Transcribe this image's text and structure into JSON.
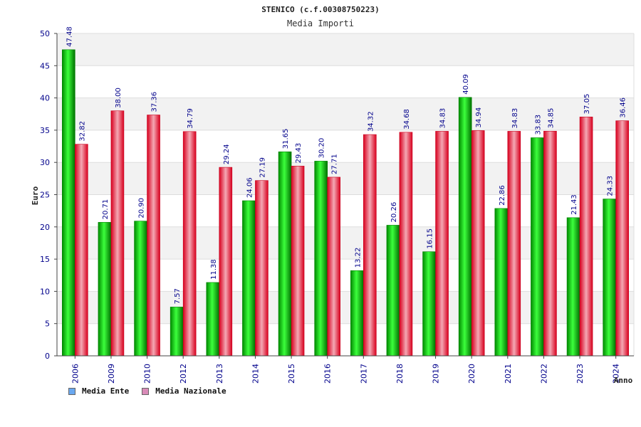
{
  "colors": {
    "ente": "#00c800",
    "nazionale": "#e8002a",
    "legend_ente": "#6aa8f0",
    "legend_nazionale": "#d98bb8",
    "text": "#00008b"
  },
  "chart_data": {
    "type": "bar",
    "title": "STENICO (c.f.00308750223)",
    "subtitle": "Media Importi",
    "ylabel": "Euro",
    "xlabel": "Anno",
    "ylim": [
      0,
      50
    ],
    "yticks": [
      0,
      5,
      10,
      15,
      20,
      25,
      30,
      35,
      40,
      45,
      50
    ],
    "categories": [
      "2006",
      "2009",
      "2010",
      "2012",
      "2013",
      "2014",
      "2015",
      "2016",
      "2017",
      "2018",
      "2019",
      "2020",
      "2021",
      "2022",
      "2023",
      "2024"
    ],
    "series": [
      {
        "name": "Media Ente",
        "values": [
          47.48,
          20.71,
          20.9,
          7.57,
          11.38,
          24.06,
          31.65,
          30.2,
          13.22,
          20.26,
          16.15,
          40.09,
          22.86,
          33.83,
          21.43,
          24.33
        ]
      },
      {
        "name": "Media Nazionale",
        "values": [
          32.82,
          38.0,
          37.36,
          34.79,
          29.24,
          27.19,
          29.43,
          27.71,
          34.32,
          34.68,
          34.83,
          34.94,
          34.83,
          34.85,
          37.05,
          36.46
        ]
      }
    ],
    "legend_position": "bottom-left"
  }
}
